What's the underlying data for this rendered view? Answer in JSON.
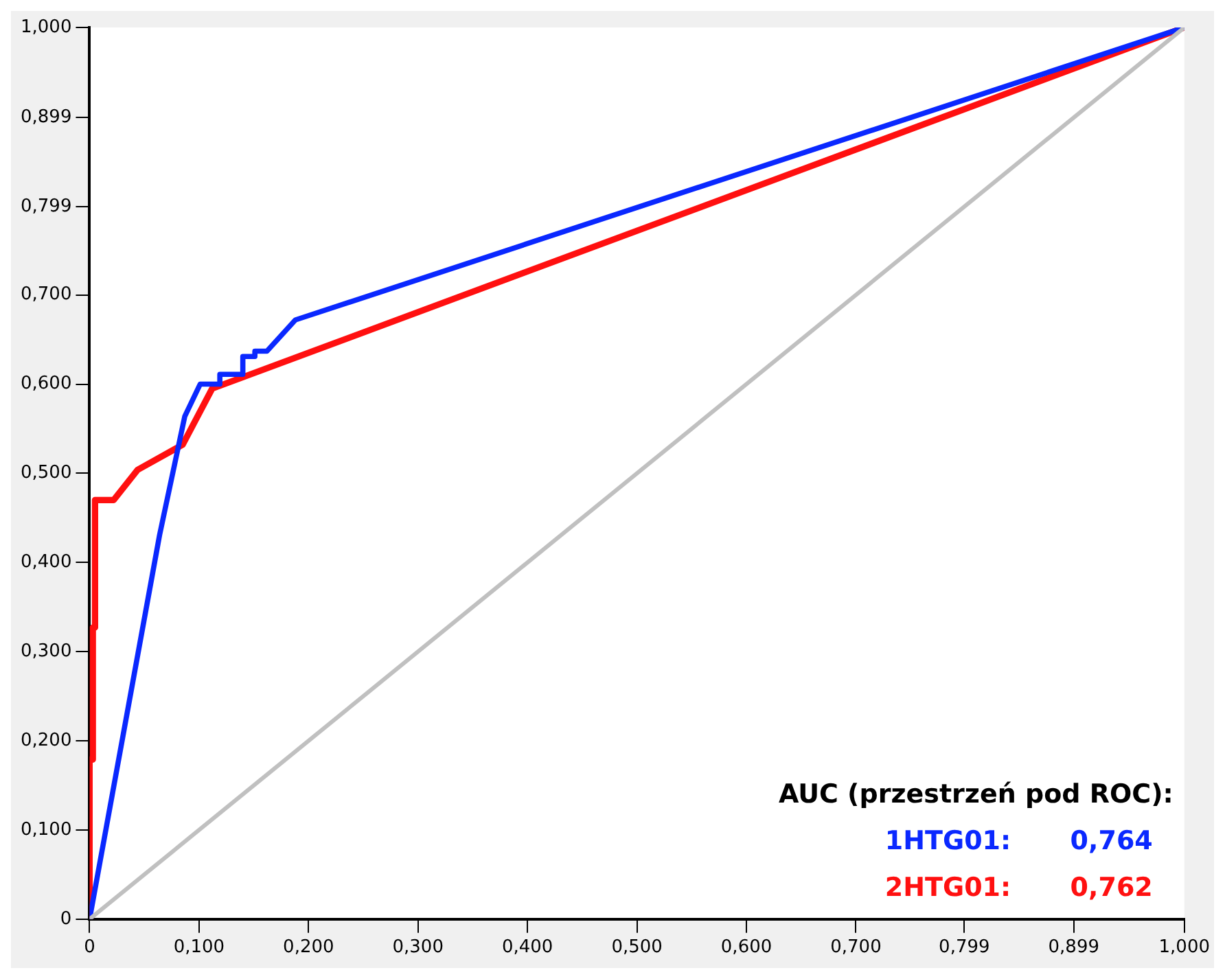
{
  "chart_data": {
    "type": "line",
    "legend_title": "AUC (przestrzeń pod ROC):",
    "legend": "bottom right",
    "annotations": [
      "0,764",
      "0,762"
    ],
    "xlim": [
      0,
      1
    ],
    "ylim": [
      0,
      1
    ],
    "xticks": [
      0,
      {
        "value": 0.1,
        "label": "0,100"
      },
      {
        "value": 0.2,
        "label": "0,200"
      },
      {
        "value": 0.3,
        "label": "0,300"
      },
      {
        "value": 0.4,
        "label": "0,400"
      },
      {
        "value": 0.5,
        "label": "0,500"
      },
      {
        "value": 0.6,
        "label": "0,600"
      },
      {
        "value": 0.7,
        "label": "0,700"
      },
      {
        "value": 0.799,
        "label": "0,799"
      },
      {
        "value": 0.899,
        "label": "0,899"
      },
      {
        "value": 1,
        "label": "1,000"
      }
    ],
    "yticks": [
      0,
      {
        "value": 0.1,
        "label": "0,100"
      },
      {
        "value": 0.2,
        "label": "0,200"
      },
      {
        "value": 0.3,
        "label": "0,300"
      },
      {
        "value": 0.4,
        "label": "0,400"
      },
      {
        "value": 0.5,
        "label": "0,500"
      },
      {
        "value": 0.6,
        "label": "0,600"
      },
      {
        "value": 0.7,
        "label": "0,700"
      },
      {
        "value": 0.799,
        "label": "0,799"
      },
      {
        "value": 0.899,
        "label": "0,899"
      },
      {
        "value": 1,
        "label": "1,000"
      }
    ],
    "grid": false,
    "marker": "none",
    "line_style": "solid",
    "series": [
      {
        "color": "#c0c0c0",
        "x": [
          0,
          1
        ],
        "values": [
          0,
          1
        ]
      },
      {
        "name": "1HTG01:",
        "color": "#0a28ff",
        "x": [
          0,
          0.064,
          0.087,
          0.101,
          0.119,
          0.119,
          0.14,
          0.14,
          0.151,
          0.151,
          0.162,
          0.188,
          1
        ],
        "values": [
          0,
          0.431,
          0.564,
          0.6,
          0.6,
          0.611,
          0.611,
          0.631,
          0.631,
          0.637,
          0.637,
          0.672,
          1
        ]
      },
      {
        "name": "2HTG01:",
        "color": "#ff1010",
        "x": [
          0,
          0,
          0.003,
          0.003,
          0.005,
          0.005,
          0.022,
          0.044,
          0.085,
          0.112,
          1
        ],
        "values": [
          0,
          0.179,
          0.179,
          0.327,
          0.327,
          0.47,
          0.47,
          0.504,
          0.532,
          0.595,
          1
        ]
      }
    ]
  }
}
